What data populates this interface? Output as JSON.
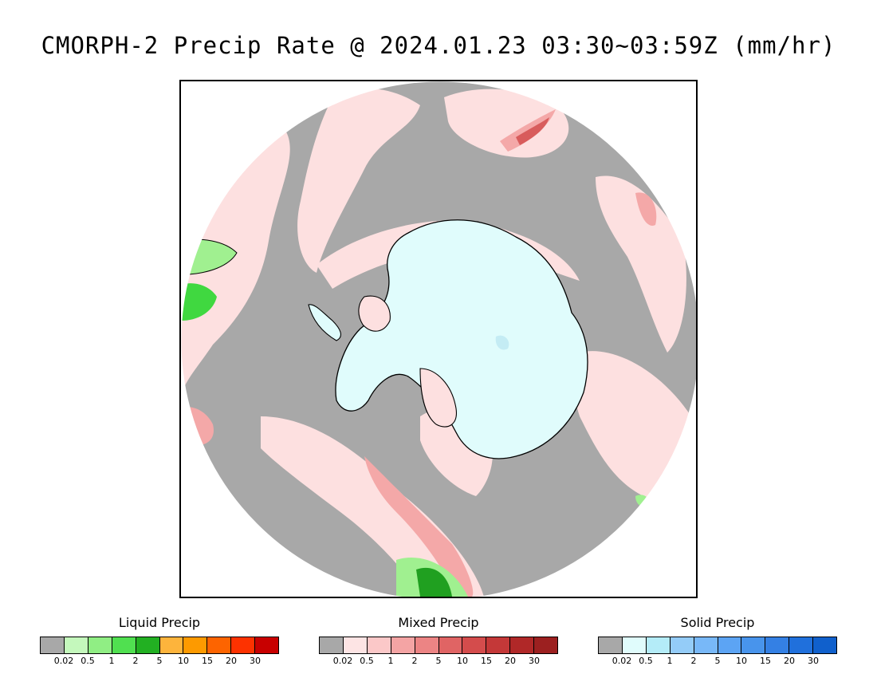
{
  "title": "CMORPH-2 Precip Rate @ 2024.01.23 03:30~03:59Z (mm/hr)",
  "map": {
    "projection": "south-polar-stereographic",
    "colors": {
      "no_precip": "#a8a8a8",
      "antarctic_ice": "#e0fcfc",
      "ice_detail": "#c4ecf4",
      "mixed_light": "#fde0e0",
      "mixed_mid": "#f4a8a8",
      "mixed_strong": "#d85c5c",
      "liquid_light": "#a0f090",
      "liquid_mid": "#40d840",
      "liquid_strong": "#20a020",
      "coastline": "#000000"
    }
  },
  "legends": [
    {
      "title": "Liquid Precip",
      "ticks": [
        "0.02",
        "0.5",
        "1",
        "2",
        "5",
        "10",
        "15",
        "20",
        "30"
      ],
      "colors": [
        "#a8a8a8",
        "#c4f8bc",
        "#90ee84",
        "#50e050",
        "#22b022",
        "#fdb43c",
        "#fd9a00",
        "#fd6400",
        "#fd3200",
        "#c80000"
      ]
    },
    {
      "title": "Mixed Precip",
      "ticks": [
        "0.02",
        "0.5",
        "1",
        "2",
        "5",
        "10",
        "15",
        "20",
        "30"
      ],
      "colors": [
        "#a8a8a8",
        "#fde4e4",
        "#fbc8c8",
        "#f4a4a4",
        "#ec8484",
        "#e06464",
        "#d44c4c",
        "#c43838",
        "#b02828",
        "#9c2020"
      ]
    },
    {
      "title": "Solid Precip",
      "ticks": [
        "0.02",
        "0.5",
        "1",
        "2",
        "5",
        "10",
        "15",
        "20",
        "30"
      ],
      "colors": [
        "#a8a8a8",
        "#e0fcfc",
        "#b4ecf8",
        "#94ccf8",
        "#78b8f8",
        "#5ca4f4",
        "#4894ec",
        "#3480e4",
        "#2070dc",
        "#1060cc"
      ]
    }
  ]
}
